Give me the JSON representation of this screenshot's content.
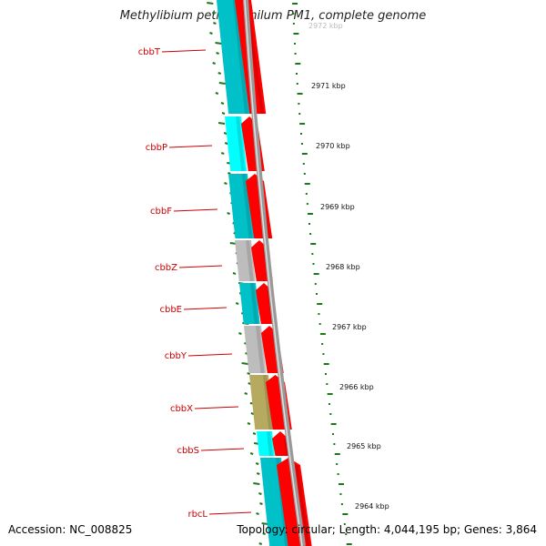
{
  "title": "Methylibium petroleiphilum PM1, complete genome",
  "footer": {
    "accession": "Accession: NC_008825",
    "summary": "Topology: circular; Length: 4,044,195 bp; Genes: 3,864"
  },
  "colors": {
    "gene_label": "#cc0000",
    "forward_strand_gene": "#ff0000",
    "cog_teal": "#00c0c8",
    "cog_cyan": "#00ffff",
    "cog_gray": "#bdbdbd",
    "cog_olive": "#b5aa60",
    "gc_marks": "#1a7a1a",
    "backbone": "#888888"
  },
  "genes": [
    {
      "name": "cbbT",
      "cog_color": "teal"
    },
    {
      "name": "cbbP",
      "cog_color": "cyan"
    },
    {
      "name": "cbbF",
      "cog_color": "teal"
    },
    {
      "name": "cbbZ",
      "cog_color": "gray"
    },
    {
      "name": "cbbE",
      "cog_color": "teal"
    },
    {
      "name": "cbbY",
      "cog_color": "gray"
    },
    {
      "name": "cbbX",
      "cog_color": "olive"
    },
    {
      "name": "cbbS",
      "cog_color": "cyan"
    },
    {
      "name": "rbcL",
      "cog_color": "teal"
    }
  ],
  "kbp_ticks": [
    "2972 kbp",
    "2971 kbp",
    "2970 kbp",
    "2969 kbp",
    "2968 kbp",
    "2967 kbp",
    "2966 kbp",
    "2965 kbp",
    "2964 kbp"
  ]
}
